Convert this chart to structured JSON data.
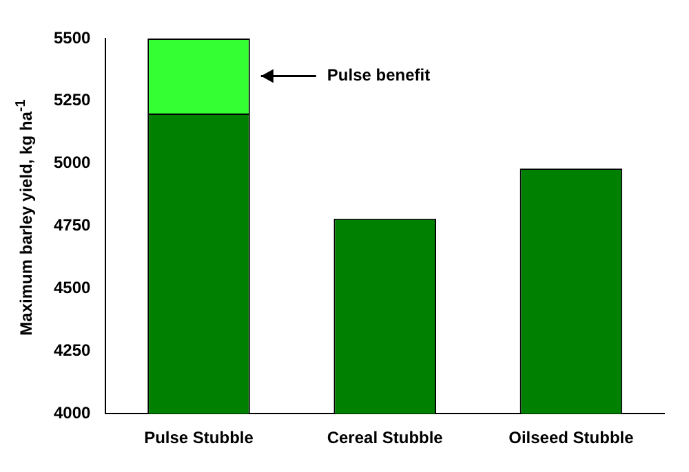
{
  "chart_data": {
    "type": "bar",
    "ylabel": "Maximum barley yield, kg ha$^{-1}$",
    "categories": [
      "Pulse Stubble",
      "Cereal Stubble",
      "Oilseed Stubble"
    ],
    "series": [
      {
        "color": "#008000",
        "values": [
          5200,
          4780,
          4980
        ]
      },
      {
        "name": "Pulse benefit",
        "color": "#33ff33",
        "values": [
          300,
          null,
          null
        ],
        "base": [
          5200,
          null,
          null
        ]
      }
    ],
    "ylim": [
      4000,
      5500
    ],
    "yticks": [
      4000,
      4250,
      4500,
      4750,
      5000,
      5250,
      5500
    ],
    "grid": false,
    "legend": false
  }
}
